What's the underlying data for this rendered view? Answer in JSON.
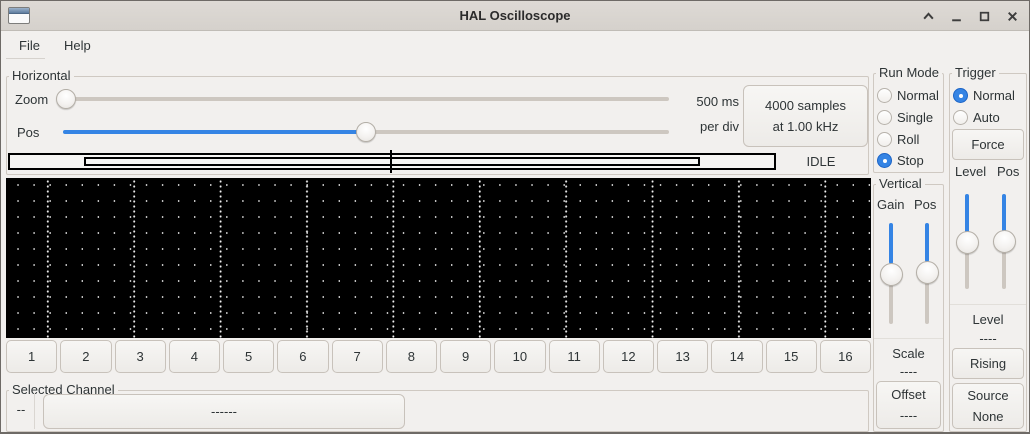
{
  "window": {
    "title": "HAL Oscilloscope",
    "controls": {
      "shade": "shade",
      "minimize": "minimize",
      "maximize": "maximize",
      "close": "close"
    }
  },
  "menu": {
    "file": "File",
    "help": "Help"
  },
  "horizontal": {
    "frame_label": "Horizontal",
    "zoom_label": "Zoom",
    "pos_label": "Pos",
    "timebase_line1": "500 ms",
    "timebase_line2": "per div",
    "samples_line1": "4000 samples",
    "samples_line2": "at 1.00 kHz",
    "status": "IDLE"
  },
  "channels": {
    "buttons": [
      "1",
      "2",
      "3",
      "4",
      "5",
      "6",
      "7",
      "8",
      "9",
      "10",
      "11",
      "12",
      "13",
      "14",
      "15",
      "16"
    ]
  },
  "selected_channel": {
    "frame_label": "Selected Channel",
    "number": "--",
    "name": "------"
  },
  "run_mode": {
    "frame_label": "Run Mode",
    "options": [
      {
        "label": "Normal",
        "selected": false
      },
      {
        "label": "Single",
        "selected": false
      },
      {
        "label": "Roll",
        "selected": false
      },
      {
        "label": "Stop",
        "selected": true
      }
    ]
  },
  "vertical": {
    "frame_label": "Vertical",
    "gain_label": "Gain",
    "pos_label": "Pos",
    "scale_label": "Scale",
    "scale_value": "----",
    "offset_label": "Offset",
    "offset_value": "----"
  },
  "trigger": {
    "frame_label": "Trigger",
    "options": [
      {
        "label": "Normal",
        "selected": true
      },
      {
        "label": "Auto",
        "selected": false
      }
    ],
    "force_label": "Force",
    "level_slider_label": "Level",
    "pos_slider_label": "Pos",
    "level_label": "Level",
    "level_value": "----",
    "edge_label": "Rising",
    "source_line1": "Source",
    "source_line2": "None"
  },
  "colors": {
    "accent": "#3584e4",
    "scope_bg": "#000000",
    "grid_dot": "#ffffff"
  }
}
